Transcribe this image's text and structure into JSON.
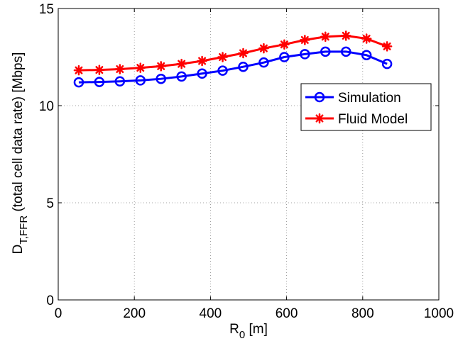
{
  "chart_data": {
    "type": "line",
    "x": [
      54,
      108,
      162,
      216,
      270,
      324,
      378,
      432,
      486,
      540,
      594,
      648,
      702,
      756,
      810,
      864
    ],
    "series": [
      {
        "name": "Simulation",
        "color": "#0000ff",
        "marker": "circle",
        "values": [
          11.2,
          11.22,
          11.25,
          11.3,
          11.38,
          11.5,
          11.65,
          11.8,
          12.0,
          12.22,
          12.5,
          12.65,
          12.78,
          12.78,
          12.6,
          12.15
        ]
      },
      {
        "name": "Fluid Model",
        "color": "#ff0000",
        "marker": "asterisk",
        "values": [
          11.82,
          11.84,
          11.88,
          11.95,
          12.03,
          12.15,
          12.3,
          12.5,
          12.7,
          12.95,
          13.15,
          13.38,
          13.55,
          13.6,
          13.45,
          13.05
        ]
      }
    ],
    "xlim": [
      0,
      1000
    ],
    "ylim": [
      0,
      15
    ],
    "xticks": [
      0,
      200,
      400,
      600,
      800,
      1000
    ],
    "yticks": [
      0,
      5,
      10,
      15
    ],
    "xtick_labels": [
      "0",
      "200",
      "400",
      "600",
      "800",
      "1000"
    ],
    "ytick_labels": [
      "0",
      "5",
      "10",
      "15"
    ],
    "xlabel": {
      "main": "R",
      "sub": "0",
      "rest": " [m]"
    },
    "ylabel": {
      "main": "D",
      "sub": "T,FFR",
      "rest": " (total cell data rate) [Mbps]"
    },
    "grid": true,
    "legend_position": "right"
  }
}
